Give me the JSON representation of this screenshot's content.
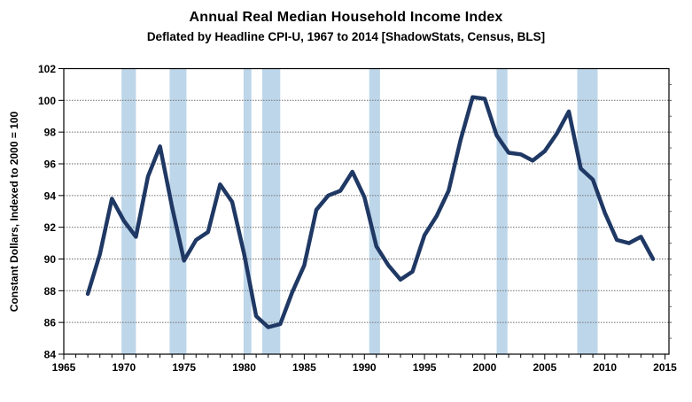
{
  "chart_data": {
    "type": "line",
    "title": "Annual Real Median Household Income Index",
    "subtitle": "Deflated by Headline CPI-U, 1967 to 2014 [ShadowStats, Census, BLS]",
    "ylabel": "Constant Dollars, Indexed to 2000 = 100",
    "ylim": [
      84,
      102
    ],
    "xlim": [
      1965,
      2015.33
    ],
    "yticks": [
      84,
      86,
      88,
      90,
      92,
      94,
      96,
      98,
      100,
      102
    ],
    "xticks": [
      1965,
      1970,
      1975,
      1980,
      1985,
      1990,
      1995,
      2000,
      2005,
      2010,
      2015
    ],
    "grid": "horizontal-dotted",
    "legend_position": "none",
    "series": [
      {
        "name": "Real Median Household Income Index (2000 = 100)",
        "x": [
          1967,
          1968,
          1969,
          1970,
          1971,
          1972,
          1973,
          1974,
          1975,
          1976,
          1977,
          1978,
          1979,
          1980,
          1981,
          1982,
          1983,
          1984,
          1985,
          1986,
          1987,
          1988,
          1989,
          1990,
          1991,
          1992,
          1993,
          1994,
          1995,
          1996,
          1997,
          1998,
          1999,
          2000,
          2001,
          2002,
          2003,
          2004,
          2005,
          2006,
          2007,
          2008,
          2009,
          2010,
          2011,
          2012,
          2013,
          2014
        ],
        "y": [
          87.8,
          90.3,
          93.8,
          92.4,
          91.4,
          95.2,
          97.1,
          93.3,
          89.9,
          91.2,
          91.7,
          94.7,
          93.6,
          90.3,
          86.4,
          85.7,
          85.9,
          87.9,
          89.6,
          93.1,
          94.0,
          94.3,
          95.5,
          93.9,
          90.8,
          89.6,
          88.7,
          89.2,
          91.5,
          92.7,
          94.3,
          97.5,
          100.2,
          100.1,
          97.8,
          96.7,
          96.6,
          96.2,
          96.8,
          97.9,
          99.3,
          95.7,
          95.0,
          92.9,
          91.2,
          91.0,
          91.4,
          90.0
        ]
      }
    ],
    "recession_bands": [
      [
        1969.8,
        1971.0
      ],
      [
        1973.8,
        1975.2
      ],
      [
        1979.95,
        1980.6
      ],
      [
        1981.5,
        1983.0
      ],
      [
        1990.4,
        1991.3
      ],
      [
        2001.0,
        2001.9
      ],
      [
        2007.7,
        2009.4
      ]
    ],
    "colors": {
      "line": "#1f3864",
      "band": "#bdd6ea",
      "grid": "#7f7f7f",
      "axis": "#000000",
      "background": "#ffffff",
      "text": "#000000"
    }
  }
}
